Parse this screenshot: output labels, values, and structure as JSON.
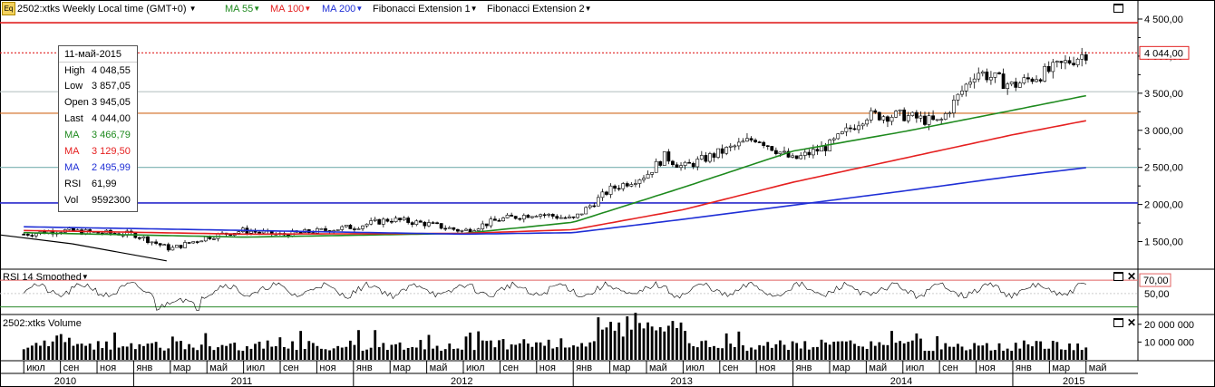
{
  "header": {
    "icon_label": "Eq",
    "symbol": "2502:xtks Weekly Local time (GMT+0)",
    "ma55": "MA 55",
    "ma100": "MA 100",
    "ma200": "MA 200",
    "fib1": "Fibonacci Extension 1",
    "fib2": "Fibonacci Extension 2"
  },
  "colors": {
    "ma55": "#1e8a1e",
    "ma100": "#e52020",
    "ma200": "#1f2fd6",
    "hline_red": "#e02020",
    "hline_orange": "#d2691e",
    "hline_teal": "#7ab0b0",
    "hline_gray": "#b8c4c4",
    "hline_blue": "#2a2acc"
  },
  "info": {
    "date": "11-май-2015",
    "high_label": "High",
    "high": "4 048,55",
    "low_label": "Low",
    "low": "3 857,05",
    "open_label": "Open",
    "open": "3 945,05",
    "last_label": "Last",
    "last": "4 044,00",
    "ma1_label": "MA",
    "ma1": "3 466,79",
    "ma2_label": "MA",
    "ma2": "3 129,50",
    "ma3_label": "MA",
    "ma3": "2 495,99",
    "rsi_label": "RSI",
    "rsi": "61,99",
    "vol_label": "Vol",
    "vol": "9592300"
  },
  "price_axis": {
    "ticks": [
      "4 500,00",
      "4 000,00",
      "3 500,00",
      "3 000,00",
      "2 500,00",
      "2 000,00",
      "1 500,00"
    ],
    "tick_values": [
      4500,
      4000,
      3500,
      3000,
      2500,
      2000,
      1500
    ],
    "last_price_label": "4 044,00",
    "last_price": 4044,
    "range": [
      1140,
      4720
    ]
  },
  "horizontal_levels": [
    4450,
    4044,
    3520,
    3230,
    2500,
    2020
  ],
  "rsi_panel": {
    "title": "RSI 14 Smoothed",
    "tick_70": "70,00",
    "tick_50": "50,00"
  },
  "volume_panel": {
    "title": "2502:xtks Volume",
    "tick_20m": "20 000 000",
    "tick_10m": "10 000 000"
  },
  "time_axis": {
    "months": [
      "июл",
      "сен",
      "ноя",
      "янв",
      "мар",
      "май",
      "июл",
      "сен",
      "ноя",
      "янв",
      "мар",
      "май",
      "июл",
      "сен",
      "ноя",
      "янв",
      "мар",
      "май",
      "июл",
      "сен",
      "ноя",
      "янв",
      "мар",
      "май",
      "июл",
      "сен",
      "ноя",
      "янв",
      "мар",
      "май"
    ],
    "years": [
      "2010",
      "2011",
      "2012",
      "2013",
      "2014",
      "2015"
    ]
  },
  "chart_data": {
    "type": "candlestick",
    "title": "2502:xtks Weekly",
    "date_range": [
      "2010-07",
      "2015-05"
    ],
    "price_range": [
      1140,
      4720
    ],
    "close_points": [
      [
        "2010-07",
        1600
      ],
      [
        "2010-09",
        1650
      ],
      [
        "2010-11",
        1620
      ],
      [
        "2011-01",
        1600
      ],
      [
        "2011-03",
        1400
      ],
      [
        "2011-05",
        1560
      ],
      [
        "2011-07",
        1650
      ],
      [
        "2011-09",
        1590
      ],
      [
        "2011-11",
        1640
      ],
      [
        "2012-01",
        1700
      ],
      [
        "2012-03",
        1800
      ],
      [
        "2012-05",
        1740
      ],
      [
        "2012-07",
        1640
      ],
      [
        "2012-09",
        1800
      ],
      [
        "2012-11",
        1880
      ],
      [
        "2013-01",
        1800
      ],
      [
        "2013-03",
        2200
      ],
      [
        "2013-05",
        2400
      ],
      [
        "2013-06",
        2650
      ],
      [
        "2013-07",
        2500
      ],
      [
        "2013-09",
        2700
      ],
      [
        "2013-11",
        2900
      ],
      [
        "2014-01",
        2600
      ],
      [
        "2014-03",
        2800
      ],
      [
        "2014-05",
        3200
      ],
      [
        "2014-07",
        3200
      ],
      [
        "2014-09",
        3100
      ],
      [
        "2014-11",
        3800
      ],
      [
        "2015-01",
        3600
      ],
      [
        "2015-03",
        3800
      ],
      [
        "2015-05",
        4044
      ]
    ],
    "ma55_points": [
      [
        "2010-07",
        1620
      ],
      [
        "2011-07",
        1560
      ],
      [
        "2012-07",
        1610
      ],
      [
        "2013-01",
        1760
      ],
      [
        "2013-07",
        2230
      ],
      [
        "2014-01",
        2720
      ],
      [
        "2014-07",
        2980
      ],
      [
        "2015-01",
        3270
      ],
      [
        "2015-05",
        3466.79
      ]
    ],
    "ma100_points": [
      [
        "2010-07",
        1650
      ],
      [
        "2011-07",
        1600
      ],
      [
        "2012-07",
        1610
      ],
      [
        "2013-01",
        1660
      ],
      [
        "2013-07",
        1930
      ],
      [
        "2014-01",
        2300
      ],
      [
        "2014-07",
        2620
      ],
      [
        "2015-01",
        2940
      ],
      [
        "2015-05",
        3129.5
      ]
    ],
    "ma200_points": [
      [
        "2010-07",
        1700
      ],
      [
        "2011-07",
        1650
      ],
      [
        "2012-07",
        1600
      ],
      [
        "2013-01",
        1620
      ],
      [
        "2013-07",
        1800
      ],
      [
        "2014-01",
        1990
      ],
      [
        "2014-07",
        2180
      ],
      [
        "2015-01",
        2380
      ],
      [
        "2015-05",
        2495.99
      ]
    ],
    "rsi_range": [
      20,
      85
    ],
    "rsi_levels": [
      70,
      50,
      30
    ],
    "volume_range": [
      0,
      25000000
    ]
  }
}
